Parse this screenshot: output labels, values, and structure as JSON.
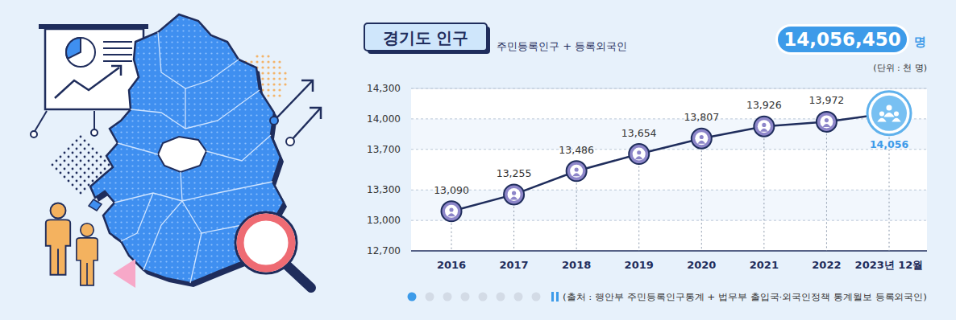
{
  "chart_data": {
    "type": "line",
    "title": "경기도 인구",
    "subtitle": "주민등록인구 + 등록외국인",
    "total": "14,056,450",
    "total_unit": "명",
    "unit": "(단위 : 천 명)",
    "source": "(출처 : 행안부 주민등록인구통계 + 법무부 출입국·외국인정책 통계월보 등록외국인)",
    "categories": [
      "2016",
      "2017",
      "2018",
      "2019",
      "2020",
      "2021",
      "2022",
      "2023년 12월"
    ],
    "values": [
      13090,
      13255,
      13486,
      13654,
      13807,
      13926,
      13972,
      14056
    ],
    "value_labels": [
      "13,090",
      "13,255",
      "13,486",
      "13,654",
      "13,807",
      "13,926",
      "13,972",
      "14,056"
    ],
    "color": "#1f2d5c",
    "marker": "circle",
    "data_labels": true,
    "grid": true,
    "ylim": [
      12700,
      14300
    ],
    "yticks": [
      {
        "value": 12700,
        "label": "12,700"
      },
      {
        "value": 13000,
        "label": "13,000"
      },
      {
        "value": 13300,
        "label": "13,300"
      },
      {
        "value": 13700,
        "label": "13,700"
      },
      {
        "value": 14000,
        "label": "14,000"
      },
      {
        "value": 14300,
        "label": "14,300"
      }
    ]
  }
}
